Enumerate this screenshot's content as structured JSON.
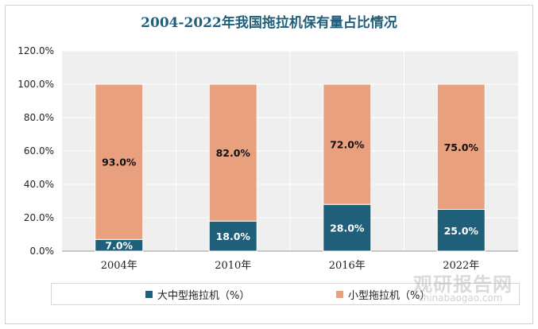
{
  "chart_data": {
    "type": "bar",
    "stacked": true,
    "title": "2004-2022年我国拖拉机保有量占比情况",
    "categories": [
      "2004年",
      "2010年",
      "2016年",
      "2022年"
    ],
    "series": [
      {
        "name": "大中型拖拉机（%）",
        "values": [
          7.0,
          18.0,
          28.0,
          25.0
        ],
        "color": "#1f5f7a",
        "labels": [
          "7.0%",
          "18.0%",
          "28.0%",
          "25.0%"
        ]
      },
      {
        "name": "小型拖拉机（%）",
        "values": [
          93.0,
          82.0,
          72.0,
          75.0
        ],
        "color": "#e8a07e",
        "labels": [
          "93.0%",
          "82.0%",
          "72.0%",
          "75.0%"
        ]
      }
    ],
    "ylim": [
      0,
      120
    ],
    "yticks": [
      0,
      20,
      40,
      60,
      80,
      100,
      120
    ],
    "yticklabels": [
      "0.0%",
      "20.0%",
      "40.0%",
      "60.0%",
      "80.0%",
      "100.0%",
      "120.0%"
    ],
    "grid": true,
    "legend": "bottom"
  },
  "watermark": {
    "cn": "观研报告网",
    "en": "chinabaogao.com"
  }
}
